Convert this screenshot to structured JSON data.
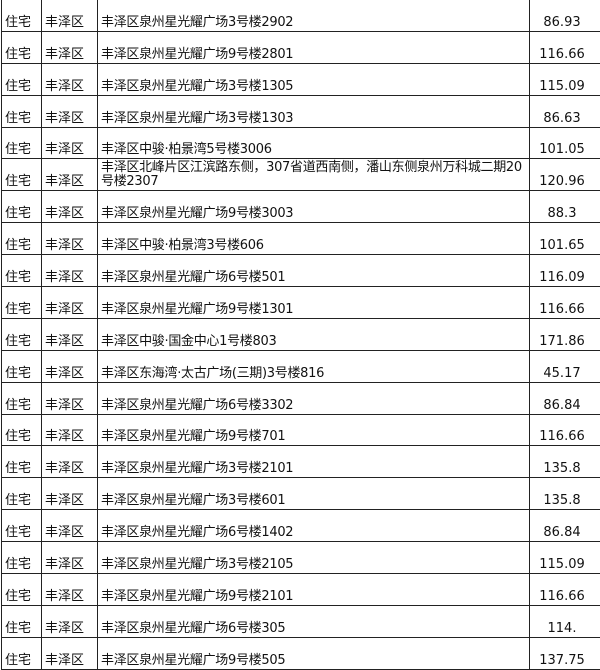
{
  "rows": [
    {
      "type": "住宅",
      "district": "丰泽区",
      "address": "丰泽区泉州星光耀广场3号楼2902",
      "area": "86.93"
    },
    {
      "type": "住宅",
      "district": "丰泽区",
      "address": "丰泽区泉州星光耀广场9号楼2801",
      "area": "116.66"
    },
    {
      "type": "住宅",
      "district": "丰泽区",
      "address": "丰泽区泉州星光耀广场3号楼1305",
      "area": "115.09"
    },
    {
      "type": "住宅",
      "district": "丰泽区",
      "address": "丰泽区泉州星光耀广场3号楼1303",
      "area": "86.63"
    },
    {
      "type": "住宅",
      "district": "丰泽区",
      "address": "丰泽区中骏·柏景湾5号楼3006",
      "area": "101.05"
    },
    {
      "type": "住宅",
      "district": "丰泽区",
      "address": "丰泽区北峰片区江滨路东侧，307省道西南侧，潘山东侧泉州万科城二期20号楼2307",
      "area": "120.96"
    },
    {
      "type": "住宅",
      "district": "丰泽区",
      "address": "丰泽区泉州星光耀广场9号楼3003",
      "area": "88.3"
    },
    {
      "type": "住宅",
      "district": "丰泽区",
      "address": "丰泽区中骏·柏景湾3号楼606",
      "area": "101.65"
    },
    {
      "type": "住宅",
      "district": "丰泽区",
      "address": "丰泽区泉州星光耀广场6号楼501",
      "area": "116.09"
    },
    {
      "type": "住宅",
      "district": "丰泽区",
      "address": "丰泽区泉州星光耀广场9号楼1301",
      "area": "116.66"
    },
    {
      "type": "住宅",
      "district": "丰泽区",
      "address": "丰泽区中骏·国金中心1号楼803",
      "area": "171.86"
    },
    {
      "type": "住宅",
      "district": "丰泽区",
      "address": "丰泽区东海湾·太古广场(三期)3号楼816",
      "area": "45.17"
    },
    {
      "type": "住宅",
      "district": "丰泽区",
      "address": "丰泽区泉州星光耀广场6号楼3302",
      "area": "86.84"
    },
    {
      "type": "住宅",
      "district": "丰泽区",
      "address": "丰泽区泉州星光耀广场9号楼701",
      "area": "116.66"
    },
    {
      "type": "住宅",
      "district": "丰泽区",
      "address": "丰泽区泉州星光耀广场3号楼2101",
      "area": "135.8"
    },
    {
      "type": "住宅",
      "district": "丰泽区",
      "address": "丰泽区泉州星光耀广场3号楼601",
      "area": "135.8"
    },
    {
      "type": "住宅",
      "district": "丰泽区",
      "address": "丰泽区泉州星光耀广场6号楼1402",
      "area": "86.84"
    },
    {
      "type": "住宅",
      "district": "丰泽区",
      "address": "丰泽区泉州星光耀广场3号楼2105",
      "area": "115.09"
    },
    {
      "type": "住宅",
      "district": "丰泽区",
      "address": "丰泽区泉州星光耀广场9号楼2101",
      "area": "116.66"
    },
    {
      "type": "住宅",
      "district": "丰泽区",
      "address": "丰泽区泉州星光耀广场6号楼305",
      "area": "114."
    },
    {
      "type": "住宅",
      "district": "丰泽区",
      "address": "丰泽区泉州星光耀广场9号楼505",
      "area": "137.75"
    }
  ]
}
